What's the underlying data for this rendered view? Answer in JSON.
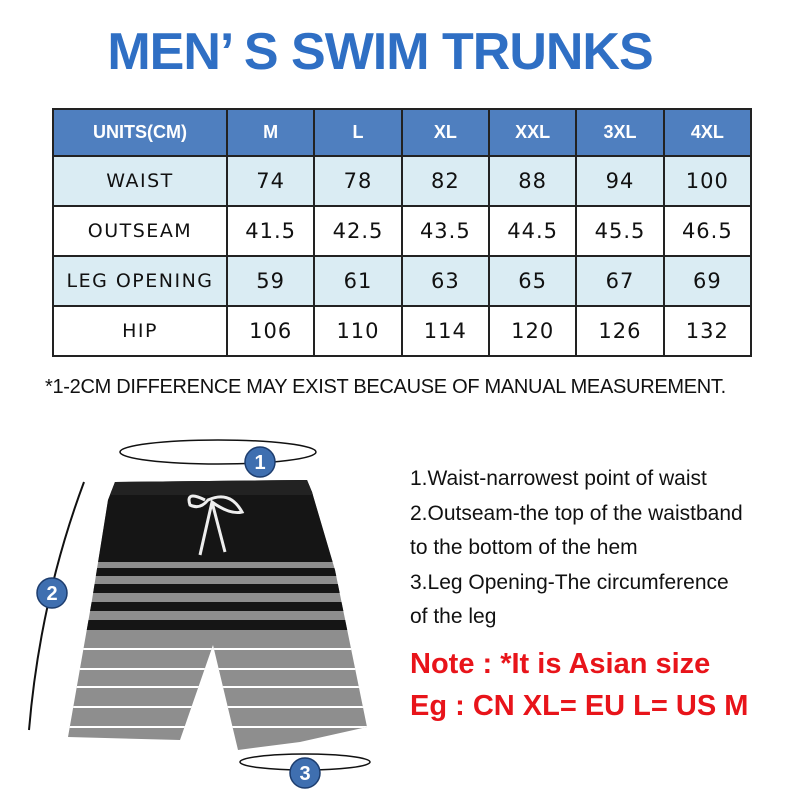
{
  "title": "MEN’ S SWIM TRUNKS",
  "table": {
    "headers": [
      "UNITS(CM)",
      "M",
      "L",
      "XL",
      "XXL",
      "3XL",
      "4XL"
    ],
    "rows": [
      {
        "label": "WAIST",
        "values": [
          "74",
          "78",
          "82",
          "88",
          "94",
          "100"
        ]
      },
      {
        "label": "OUTSEAM",
        "values": [
          "41.5",
          "42.5",
          "43.5",
          "44.5",
          "45.5",
          "46.5"
        ]
      },
      {
        "label": "LEG OPENING",
        "values": [
          "59",
          "61",
          "63",
          "65",
          "67",
          "69"
        ]
      },
      {
        "label": "HIP",
        "values": [
          "106",
          "110",
          "114",
          "120",
          "126",
          "132"
        ]
      }
    ]
  },
  "disclaimer": "*1-2CM DIFFERENCE MAY EXIST BECAUSE OF MANUAL MEASUREMENT.",
  "diagram": {
    "markers": [
      "1",
      "2",
      "3"
    ]
  },
  "instructions": [
    "1.Waist-narrowest point of waist",
    "2.Outseam-the top of the waistband",
    "to the bottom of the hem",
    "3.Leg Opening-The circumference",
    "of the leg"
  ],
  "note": "Note : *It is Asian size",
  "example": "Eg : CN XL= EU L= US M",
  "colors": {
    "title": "#2f6fc4",
    "header": "#4f7fbf",
    "alt_row": "#daecf3",
    "note": "#e8141a"
  }
}
